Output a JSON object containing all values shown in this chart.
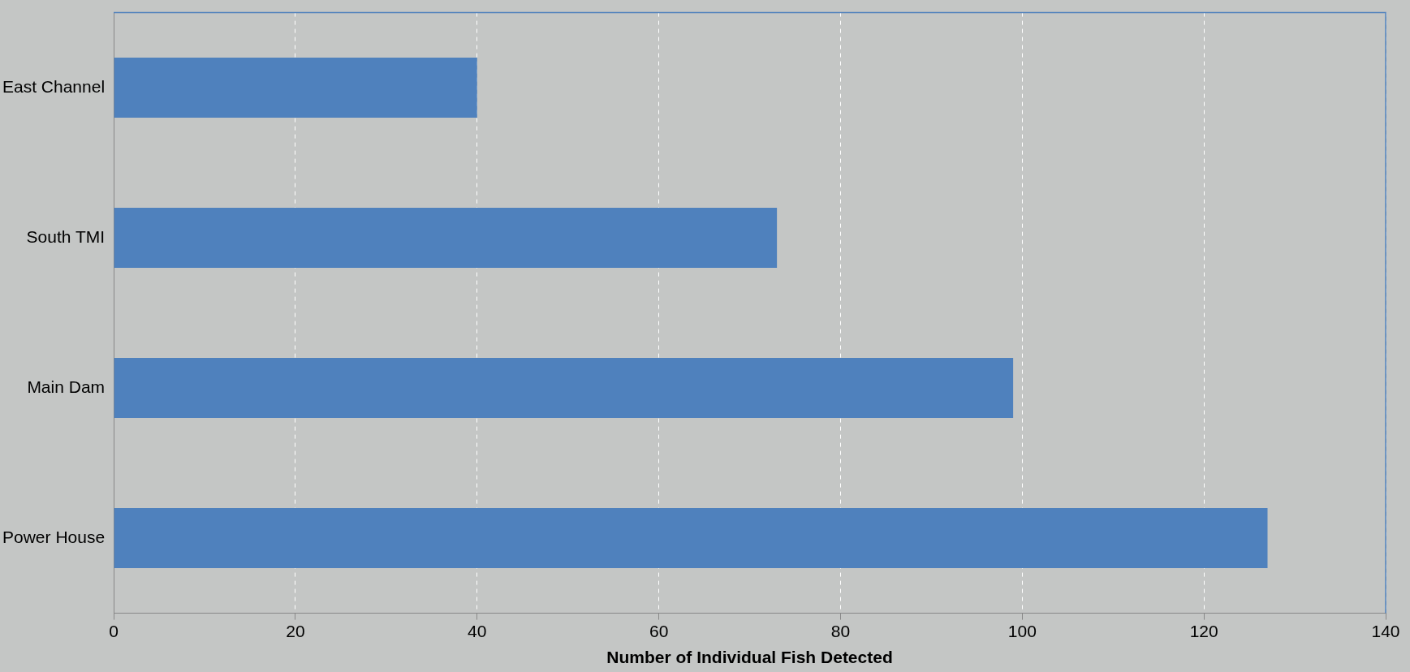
{
  "chart_data": {
    "type": "bar",
    "orientation": "horizontal",
    "categories": [
      "East Channel",
      "South TMI",
      "Main Dam",
      "Power House"
    ],
    "values": [
      40,
      73,
      99,
      127
    ],
    "color": "#4f81bd",
    "xlabel": "Number of Individual Fish Detected",
    "xlim": [
      0,
      140
    ],
    "xticks": [
      0,
      20,
      40,
      60,
      80,
      100,
      120,
      140
    ],
    "grid": "x"
  }
}
